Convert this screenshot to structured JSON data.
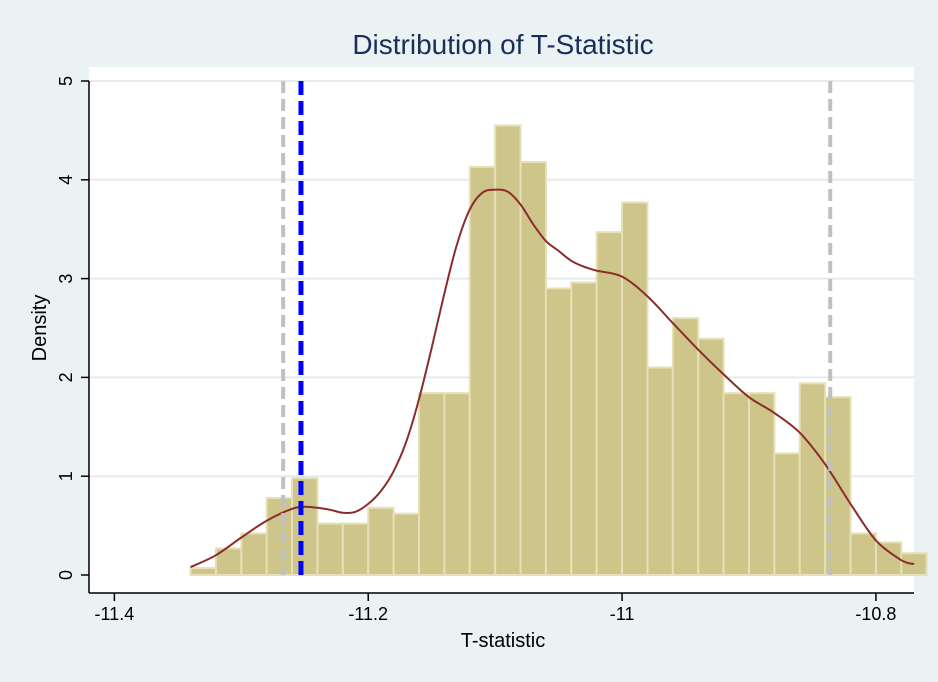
{
  "chart_data": {
    "type": "bar",
    "title": "Distribution of T-Statistic",
    "xlabel": "T-statistic",
    "ylabel": "Density",
    "xlim": [
      -11.42,
      -10.77
    ],
    "ylim": [
      0,
      5
    ],
    "x_ticks": [
      -11.4,
      -11.2,
      -11,
      -10.8
    ],
    "x_tick_labels": [
      "-11.4",
      "-11.2",
      "-11",
      "-10.8"
    ],
    "y_ticks": [
      0,
      1,
      2,
      3,
      4,
      5
    ],
    "y_tick_labels": [
      "0",
      "1",
      "2",
      "3",
      "4",
      "5"
    ],
    "grid": "horizontal",
    "histogram": {
      "bin_start": -11.34,
      "bin_width": 0.02,
      "values": [
        0.07,
        0.27,
        0.42,
        0.78,
        0.98,
        0.52,
        0.52,
        0.68,
        0.62,
        1.84,
        1.84,
        4.13,
        4.55,
        4.18,
        2.9,
        2.96,
        3.47,
        3.77,
        2.1,
        2.6,
        2.39,
        1.84,
        1.84,
        1.23,
        1.94,
        1.8,
        0.42,
        0.33,
        0.22
      ],
      "fill_color": "#cdc58a",
      "edge_color": "#e5e0b5"
    },
    "density_curve": {
      "color": "#8b2c2c",
      "x": [
        -11.34,
        -11.32,
        -11.3,
        -11.28,
        -11.26,
        -11.25,
        -11.24,
        -11.23,
        -11.22,
        -11.21,
        -11.2,
        -11.19,
        -11.18,
        -11.17,
        -11.16,
        -11.15,
        -11.14,
        -11.13,
        -11.12,
        -11.11,
        -11.1,
        -11.09,
        -11.08,
        -11.07,
        -11.06,
        -11.05,
        -11.04,
        -11.03,
        -11.02,
        -11.0,
        -10.98,
        -10.96,
        -10.94,
        -10.92,
        -10.9,
        -10.88,
        -10.86,
        -10.84,
        -10.82,
        -10.8,
        -10.78,
        -10.77
      ],
      "y": [
        0.08,
        0.2,
        0.38,
        0.55,
        0.67,
        0.69,
        0.68,
        0.66,
        0.63,
        0.64,
        0.72,
        0.85,
        1.05,
        1.35,
        1.78,
        2.3,
        2.85,
        3.35,
        3.7,
        3.87,
        3.9,
        3.88,
        3.75,
        3.55,
        3.38,
        3.28,
        3.18,
        3.12,
        3.08,
        3.02,
        2.82,
        2.55,
        2.28,
        2.03,
        1.8,
        1.64,
        1.44,
        1.12,
        0.72,
        0.35,
        0.15,
        0.11
      ]
    },
    "reference_lines": [
      {
        "x": -11.267,
        "color": "#c0c0c0",
        "style": "dashed"
      },
      {
        "x": -11.253,
        "color": "#0000ff",
        "style": "dashed"
      },
      {
        "x": -10.836,
        "color": "#c0c0c0",
        "style": "dashed"
      }
    ]
  }
}
